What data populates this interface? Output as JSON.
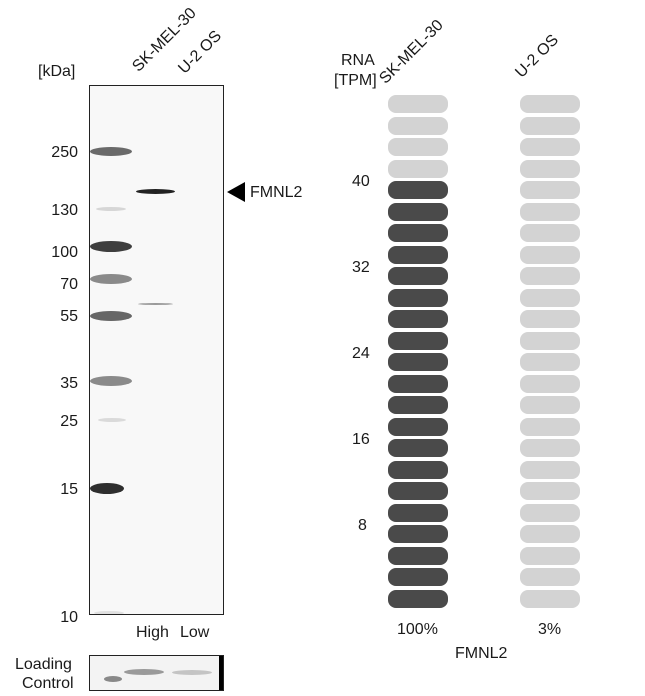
{
  "western_blot": {
    "kda_label": "[kDa]",
    "lanes": [
      "SK-MEL-30",
      "U-2 OS"
    ],
    "mw_markers": [
      "250",
      "130",
      "100",
      "70",
      "55",
      "35",
      "25",
      "15",
      "10"
    ],
    "target_label": "FMNL2",
    "expression_labels": [
      "High",
      "Low"
    ],
    "loading_control_label": [
      "Loading",
      "Control"
    ]
  },
  "rna": {
    "header": [
      "RNA",
      "[TPM]"
    ],
    "cell_lines": [
      "SK-MEL-30",
      "U-2 OS"
    ],
    "axis_ticks": [
      "40",
      "32",
      "24",
      "16",
      "8"
    ],
    "percentages": [
      "100%",
      "3%"
    ],
    "gene": "FMNL2",
    "colors": {
      "filled": "#4a4a4a",
      "empty": "#d3d3d3"
    }
  },
  "chart_data": {
    "type": "bar",
    "categories": [
      "SK-MEL-30",
      "U-2 OS"
    ],
    "values_percent": [
      100,
      3
    ],
    "filled_units_of_24": [
      20,
      0
    ],
    "ylabel": "RNA [TPM]",
    "yticks": [
      8,
      16,
      24,
      32,
      40
    ]
  }
}
